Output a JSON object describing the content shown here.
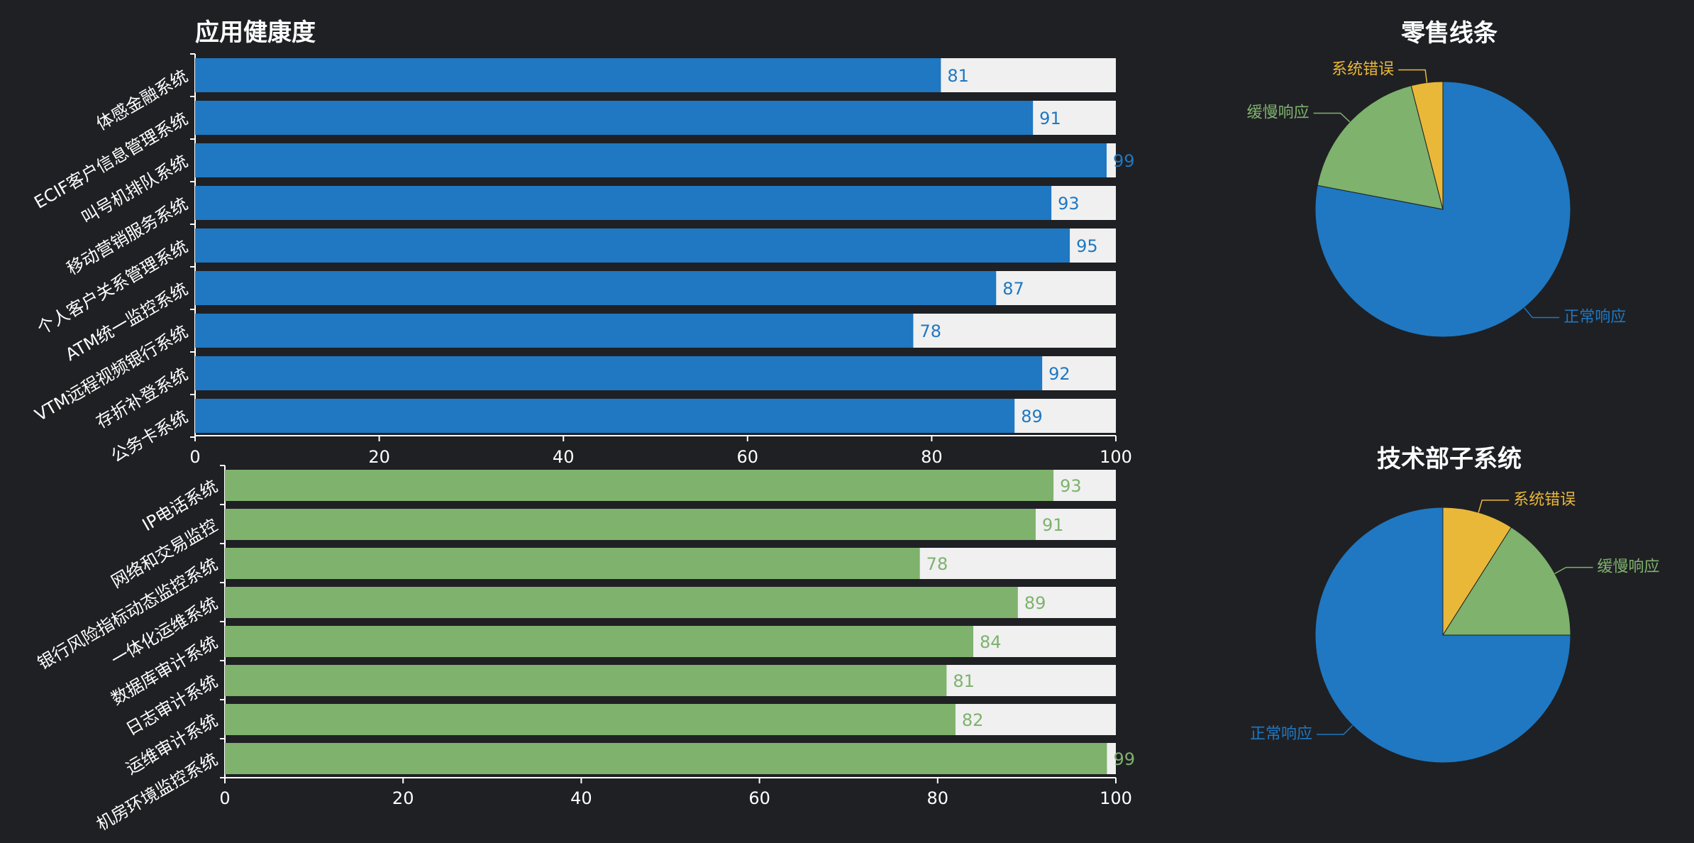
{
  "chart_data": [
    {
      "type": "bar",
      "orientation": "horizontal",
      "title": "应用健康度",
      "color": "#1f78c1",
      "track_color": "#f0f0f0",
      "xlim": [
        0,
        100
      ],
      "xticks": [
        "0",
        "20",
        "40",
        "60",
        "80",
        "100"
      ],
      "categories": [
        "体感金融系统",
        "ECIF客户信息管理系统",
        "叫号机排队系统",
        "移动营销服务系统",
        "个人客户关系管理系统",
        "ATM统一监控系统",
        "VTM远程视频银行系统",
        "存折补登系统",
        "公务卡系统"
      ],
      "values": [
        81,
        91,
        99,
        93,
        95,
        87,
        78,
        92,
        89
      ]
    },
    {
      "type": "bar",
      "orientation": "horizontal",
      "title": "",
      "color": "#7eb26d",
      "track_color": "#f0f0f0",
      "xlim": [
        0,
        100
      ],
      "xticks": [
        "0",
        "20",
        "40",
        "60",
        "80",
        "100"
      ],
      "categories": [
        "IP电话系统",
        "网络和交易监控",
        "银行风险指标动态监控系统",
        "一体化运维系统",
        "数据库审计系统",
        "日志审计系统",
        "运维审计系统",
        "机房环境监控系统"
      ],
      "values": [
        93,
        91,
        78,
        89,
        84,
        81,
        82,
        99
      ]
    },
    {
      "type": "pie",
      "title": "零售线条",
      "slices": [
        {
          "label": "正常响应",
          "value": 0.78,
          "color": "#1f78c1"
        },
        {
          "label": "缓慢响应",
          "value": 0.18,
          "color": "#7eb26d"
        },
        {
          "label": "系统错误",
          "value": 0.04,
          "color": "#eab839"
        }
      ]
    },
    {
      "type": "pie",
      "title": "技术部子系统",
      "slices": [
        {
          "label": "系统错误",
          "value": 0.09,
          "color": "#eab839"
        },
        {
          "label": "缓慢响应",
          "value": 0.16,
          "color": "#7eb26d"
        },
        {
          "label": "正常响应",
          "value": 0.75,
          "color": "#1f78c1"
        }
      ]
    }
  ]
}
